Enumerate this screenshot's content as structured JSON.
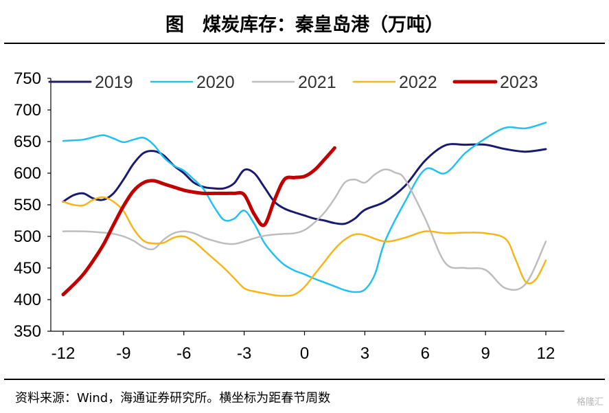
{
  "header": {
    "title": "图　煤炭库存：秦皇岛港（万吨）"
  },
  "footer": {
    "source": "资料来源：Wind，海通证券研究所。横坐标为距春节周数"
  },
  "watermark": {
    "text": "格隆汇"
  },
  "chart_data": {
    "type": "line",
    "title": "图　煤炭库存：秦皇岛港（万吨）",
    "xlabel": "",
    "ylabel": "",
    "xlim": [
      -12.4,
      12.6
    ],
    "ylim": [
      350,
      750
    ],
    "xticks": [
      -12,
      -9,
      -6,
      -3,
      0,
      3,
      6,
      9,
      12
    ],
    "yticks": [
      350,
      400,
      450,
      500,
      550,
      600,
      650,
      700,
      750
    ],
    "legend_position": "top",
    "grid": false,
    "series": [
      {
        "name": "2019",
        "color": "#1a1a6e",
        "width": 3,
        "x": [
          -12,
          -11.5,
          -11,
          -10.5,
          -10,
          -9.5,
          -9,
          -8.5,
          -8,
          -7.5,
          -7,
          -6.5,
          -6,
          -5.5,
          -5,
          -4.5,
          -4,
          -3.5,
          -3,
          -2.5,
          -2,
          -1.5,
          -1,
          -0.5,
          0,
          0.5,
          1,
          1.5,
          2,
          2.5,
          3,
          4,
          5,
          6,
          7,
          8,
          9,
          10,
          11,
          12
        ],
        "y": [
          555,
          565,
          568,
          560,
          558,
          568,
          590,
          615,
          632,
          635,
          628,
          612,
          600,
          585,
          578,
          576,
          576,
          584,
          605,
          600,
          578,
          555,
          544,
          538,
          533,
          528,
          525,
          521,
          520,
          528,
          542,
          555,
          580,
          620,
          644,
          645,
          645,
          638,
          634,
          638
        ]
      },
      {
        "name": "2020",
        "color": "#1ec1ef",
        "width": 2.5,
        "x": [
          -12,
          -11.5,
          -11,
          -10.5,
          -10,
          -9.5,
          -9,
          -8.5,
          -8,
          -7.5,
          -7,
          -6.5,
          -6,
          -5.5,
          -5,
          -4.5,
          -4,
          -3.5,
          -3,
          -2.5,
          -2,
          -1.5,
          -1,
          -0.5,
          0,
          0.5,
          1,
          1.5,
          2,
          2.5,
          3,
          3.5,
          4,
          5,
          6,
          7,
          8,
          9,
          10,
          11,
          12
        ],
        "y": [
          651,
          652,
          653,
          657,
          660,
          655,
          649,
          653,
          656,
          645,
          625,
          612,
          604,
          590,
          574,
          547,
          526,
          528,
          541,
          520,
          490,
          470,
          455,
          446,
          440,
          433,
          427,
          421,
          415,
          412,
          416,
          440,
          492,
          555,
          606,
          600,
          632,
          655,
          672,
          671,
          680
        ]
      },
      {
        "name": "2021",
        "color": "#bdbdbd",
        "width": 2.5,
        "x": [
          -12,
          -11,
          -10,
          -9.5,
          -9,
          -8.5,
          -8,
          -7.5,
          -7,
          -6.5,
          -6,
          -5.5,
          -5,
          -4.5,
          -4,
          -3.5,
          -3,
          -2.5,
          -2,
          -1.5,
          -1,
          -0.5,
          0,
          0.5,
          1,
          1.5,
          2,
          2.5,
          3,
          3.5,
          4,
          4.5,
          5,
          6,
          7,
          8,
          9,
          10,
          11,
          12
        ],
        "y": [
          508,
          508,
          506,
          504,
          500,
          493,
          483,
          480,
          495,
          505,
          508,
          505,
          498,
          493,
          489,
          488,
          492,
          497,
          501,
          503,
          504,
          505,
          510,
          522,
          538,
          560,
          585,
          590,
          585,
          598,
          606,
          601,
          590,
          528,
          458,
          450,
          447,
          418,
          425,
          492
        ]
      },
      {
        "name": "2022",
        "color": "#f7b517",
        "width": 2.5,
        "x": [
          -12,
          -11.5,
          -11,
          -10.5,
          -10,
          -9.5,
          -9,
          -8.5,
          -8,
          -7.5,
          -7,
          -6.5,
          -6,
          -5.5,
          -5,
          -4.5,
          -4,
          -3.5,
          -3,
          -2.5,
          -2,
          -1.5,
          -1,
          -0.5,
          0,
          0.5,
          1,
          1.5,
          2,
          2.5,
          3,
          4,
          5,
          6,
          7,
          8,
          9,
          10,
          10.5,
          11,
          11.5,
          12
        ],
        "y": [
          555,
          550,
          549,
          558,
          562,
          555,
          540,
          512,
          493,
          489,
          490,
          498,
          500,
          492,
          478,
          464,
          450,
          434,
          418,
          413,
          410,
          407,
          406,
          408,
          420,
          440,
          460,
          480,
          495,
          503,
          502,
          492,
          498,
          508,
          505,
          506,
          505,
          496,
          463,
          428,
          432,
          462
        ]
      },
      {
        "name": "2023",
        "color": "#c00000",
        "width": 5,
        "x": [
          -12,
          -11.5,
          -11,
          -10.5,
          -10,
          -9.5,
          -9,
          -8.5,
          -8,
          -7.5,
          -7,
          -6.5,
          -6,
          -5.5,
          -5,
          -4.5,
          -4,
          -3.5,
          -3,
          -2.5,
          -2,
          -1.5,
          -1,
          -0.5,
          0,
          0.5,
          1,
          1.5
        ],
        "y": [
          408,
          423,
          440,
          462,
          487,
          518,
          548,
          572,
          585,
          588,
          583,
          578,
          573,
          570,
          568,
          568,
          568,
          568,
          566,
          535,
          518,
          557,
          590,
          593,
          595,
          605,
          622,
          640
        ]
      }
    ]
  }
}
